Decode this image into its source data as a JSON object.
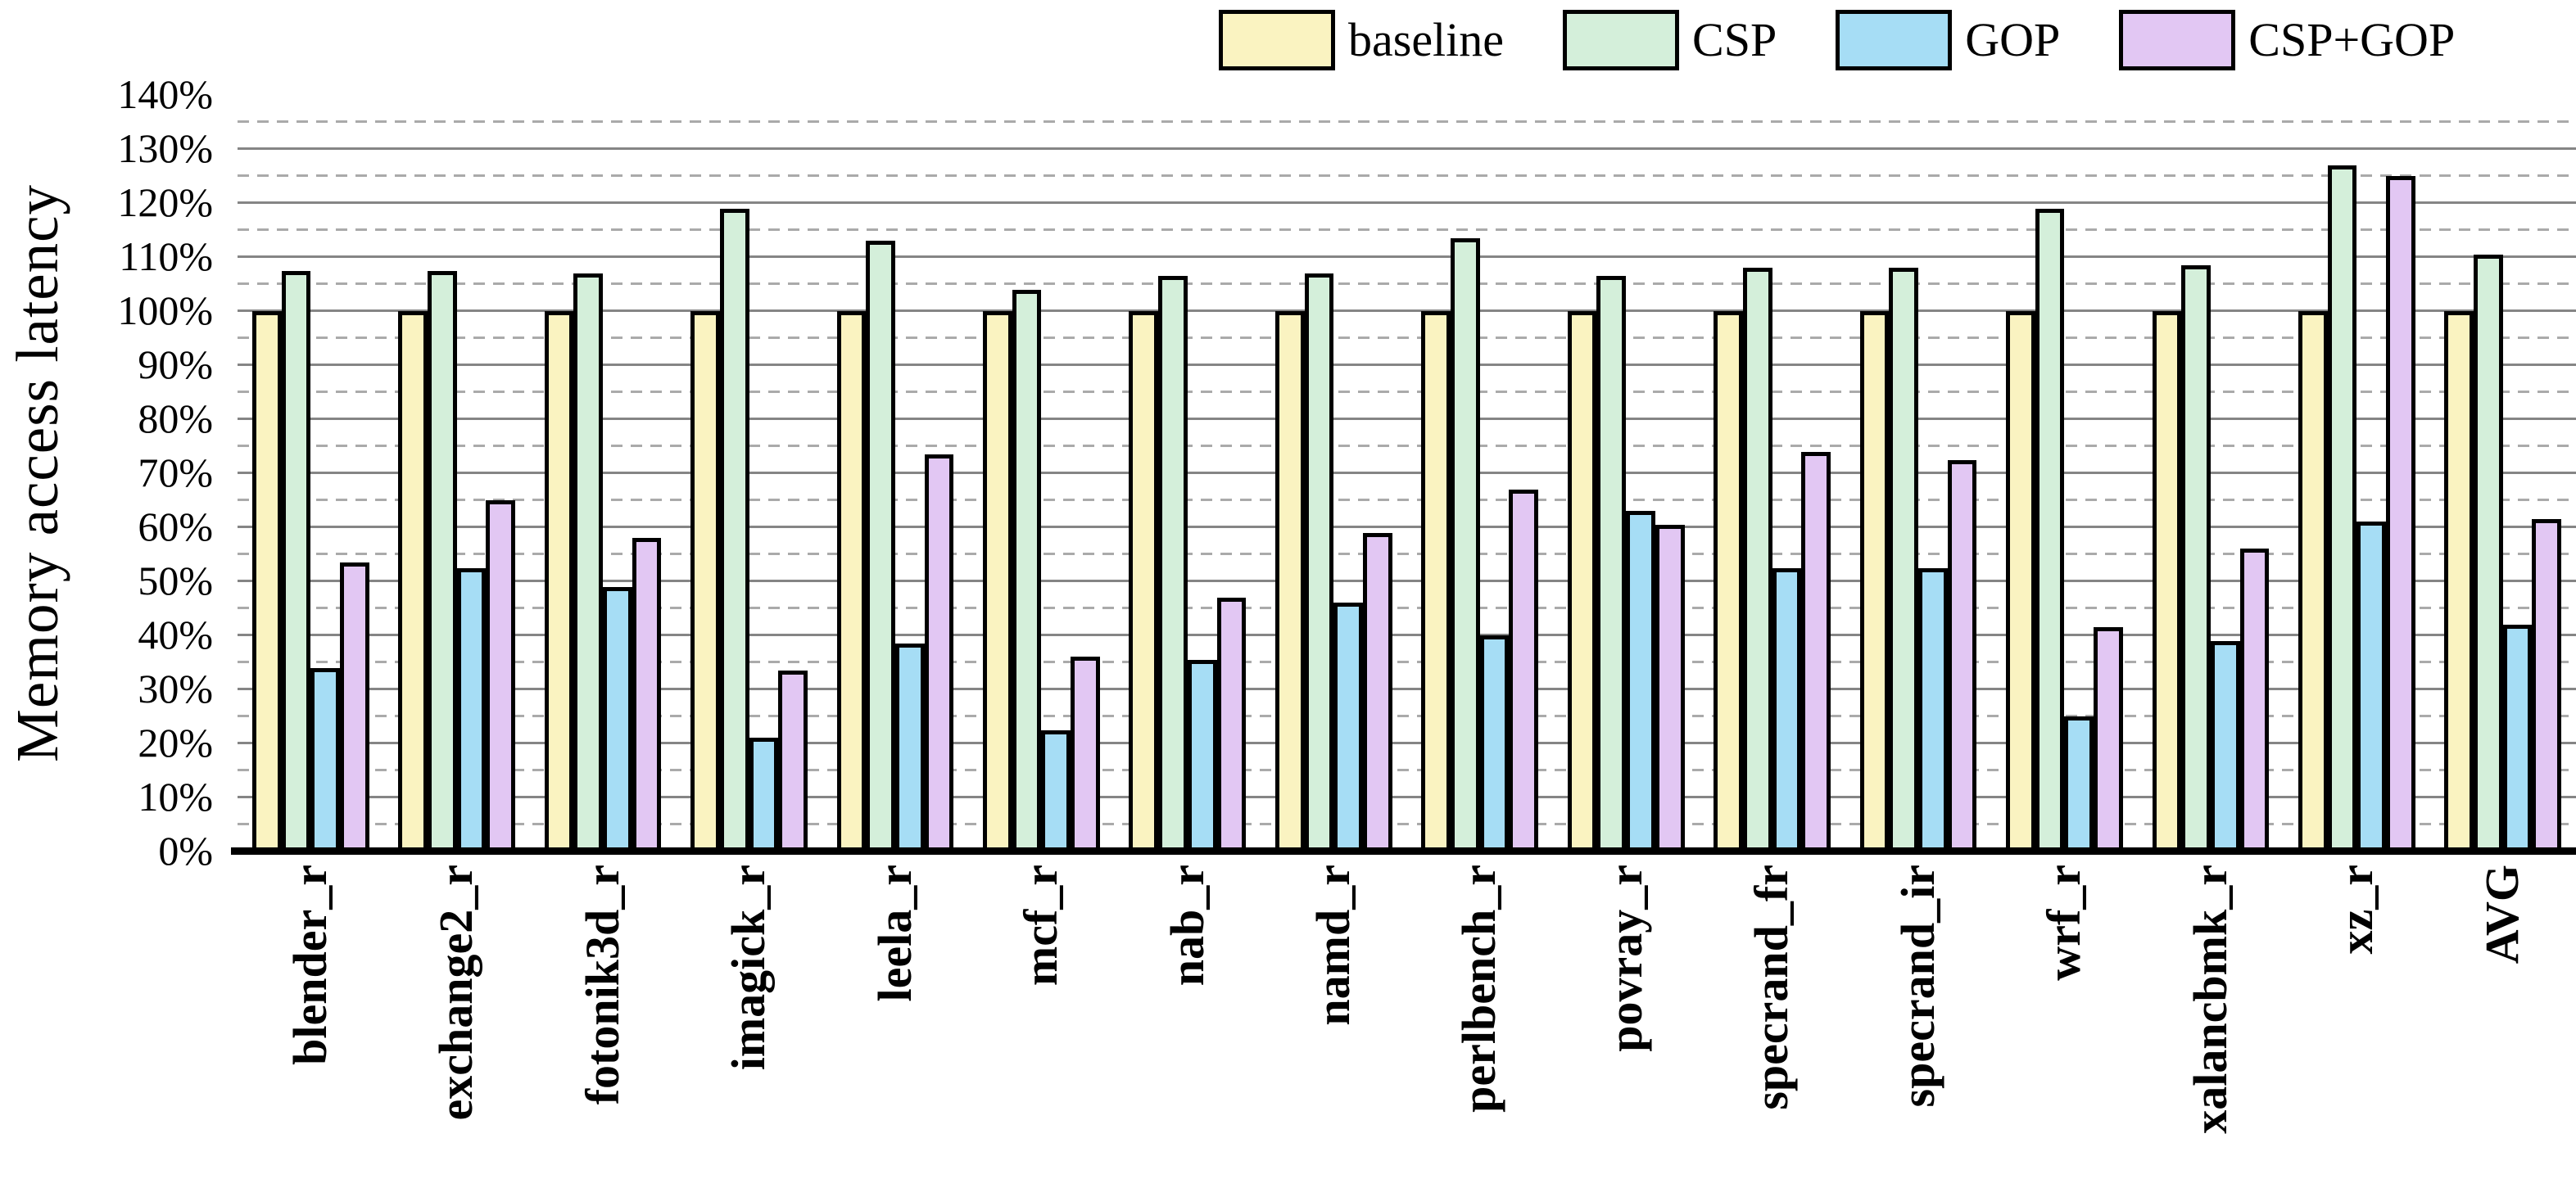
{
  "chart_data": {
    "type": "bar",
    "title": "",
    "ylabel": "Memory access latency",
    "xlabel": "",
    "ylim": [
      0,
      140
    ],
    "ytick_step_pct": 10,
    "minor_grid_step_pct": 5,
    "ytick_labels": [
      "0%",
      "10%",
      "20%",
      "30%",
      "40%",
      "50%",
      "60%",
      "70%",
      "80%",
      "90%",
      "100%",
      "110%",
      "120%",
      "130%",
      "140%"
    ],
    "grid": "major-solid-minor-dashed, no line at 140%",
    "legend_position": "top-right",
    "legend_labels": [
      "baseline",
      "CSP",
      "GOP",
      "CSP+GOP"
    ],
    "categories": [
      "blender_r",
      "exchange2_r",
      "fotonik3d_r",
      "imagick_r",
      "leela_r",
      "mcf_r",
      "nab_r",
      "namd_r",
      "perlbench_r",
      "povray_r",
      "specrand_fr",
      "specrand_ir",
      "wrf_r",
      "xalancbmk_r",
      "xz_r",
      "AVG"
    ],
    "series": [
      {
        "name": "baseline",
        "color": "#FAF3C1",
        "values": [
          100,
          100,
          100,
          100,
          100,
          100,
          100,
          100,
          100,
          100,
          100,
          100,
          100,
          100,
          100,
          100
        ]
      },
      {
        "name": "CSP",
        "color": "#D4EFDA",
        "values": [
          107.5,
          107.5,
          107,
          119,
          113,
          104,
          106.5,
          107,
          113.5,
          106.5,
          108,
          108,
          119,
          108.5,
          127,
          110.5
        ]
      },
      {
        "name": "GOP",
        "color": "#A6DDF5",
        "values": [
          34,
          52.5,
          49,
          21,
          38.5,
          22.5,
          35.5,
          46,
          40,
          63,
          52.5,
          52.5,
          25,
          39,
          61,
          42
        ]
      },
      {
        "name": "CSP+GOP",
        "color": "#E2C7F3",
        "values": [
          53.5,
          65,
          58,
          33.5,
          73.5,
          36,
          47,
          59,
          67,
          60.5,
          74,
          72.5,
          41.5,
          56,
          125,
          61.5
        ]
      }
    ],
    "colors": {
      "bar_border": "#000000",
      "axis_line": "#000000",
      "major_gridline": "#858585",
      "minor_gridline": "#aaaaaa",
      "text": "#000000",
      "background": "#ffffff"
    }
  }
}
